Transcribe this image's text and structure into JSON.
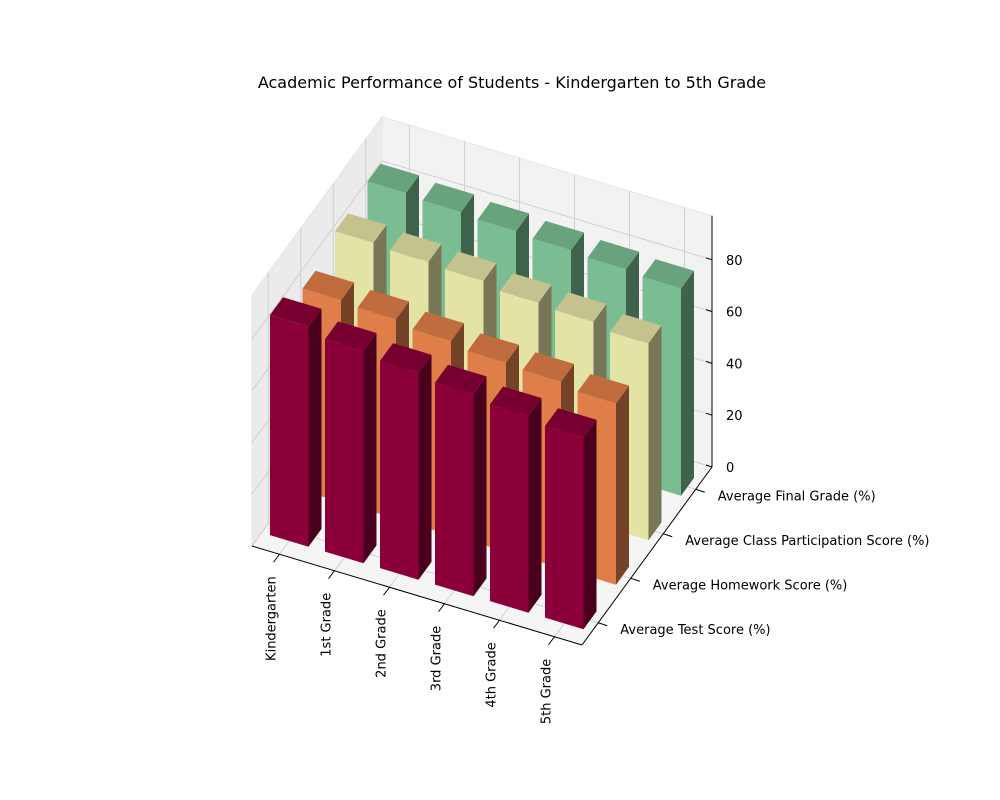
{
  "chart_data": {
    "type": "bar3d",
    "title": "Academic Performance of Students - Kindergarten to 5th Grade",
    "categories": [
      "Kindergarten",
      "1st Grade",
      "2nd Grade",
      "3rd Grade",
      "4th Grade",
      "5th Grade"
    ],
    "series": [
      {
        "name": "Average Test Score (%)",
        "color": "#8b0038",
        "values": [
          85,
          82,
          80,
          78,
          76,
          74
        ]
      },
      {
        "name": "Average Homework Score (%)",
        "color": "#e07e49",
        "values": [
          78,
          77,
          75,
          73,
          72,
          70
        ]
      },
      {
        "name": "Average Class Participation Score (%)",
        "color": "#e4e3a6",
        "values": [
          83,
          82,
          81,
          79,
          78,
          76
        ]
      },
      {
        "name": "Average Final Grade (%)",
        "color": "#7abd93",
        "values": [
          85,
          84,
          83,
          82,
          81,
          80
        ]
      }
    ],
    "zticks": [
      0,
      20,
      40,
      60,
      80
    ],
    "zlim": [
      0,
      97
    ],
    "grid": true
  }
}
